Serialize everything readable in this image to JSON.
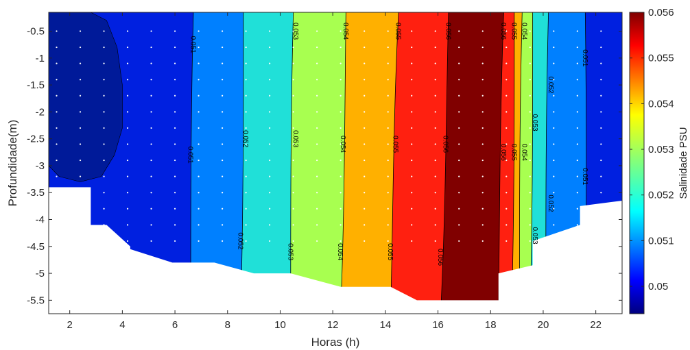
{
  "chart_data": {
    "type": "heatmap",
    "subtype": "filled-contour",
    "title": "",
    "xlabel": "Horas (h)",
    "ylabel": "Profundidade(m)",
    "colorbar_label": "Salinidade PSU",
    "xlim": [
      1.2,
      23.0
    ],
    "ylim": [
      -5.75,
      -0.15
    ],
    "x_ticks": [
      2,
      4,
      6,
      8,
      10,
      12,
      14,
      16,
      18,
      20,
      22
    ],
    "x_tick_labels": [
      "2",
      "4",
      "6",
      "8",
      "10",
      "12",
      "14",
      "16",
      "18",
      "20",
      "22"
    ],
    "y_ticks": [
      -0.5,
      -1,
      -1.5,
      -2,
      -2.5,
      -3,
      -3.5,
      -4,
      -4.5,
      -5,
      -5.5
    ],
    "y_tick_labels": [
      "-0.5",
      "-1",
      "-1.5",
      "-2",
      "-2.5",
      "-3",
      "-3.5",
      "-4",
      "-4.5",
      "-5",
      "-5.5"
    ],
    "clim": [
      0.0494,
      0.056
    ],
    "colorbar_ticks": [
      0.05,
      0.051,
      0.052,
      0.053,
      0.054,
      0.055,
      0.056
    ],
    "colorbar_tick_labels": [
      "0.05",
      "0.051",
      "0.052",
      "0.053",
      "0.054",
      "0.055",
      "0.056"
    ],
    "colormap": "jet",
    "grid": false,
    "bands": [
      {
        "level": 0.0497,
        "x_top": 1.2,
        "x_bottom": 1.2,
        "color": "#0010b0"
      },
      {
        "level": 0.0505,
        "x_top": 1.2,
        "x_bottom": 1.2,
        "color": "#0020e0"
      },
      {
        "level": 0.0515,
        "x_top": 6.7,
        "x_bottom": 6.6,
        "color": "#0080ff"
      },
      {
        "level": 0.0525,
        "x_top": 8.6,
        "x_bottom": 8.5,
        "color": "#20e0d8"
      },
      {
        "level": 0.0535,
        "x_top": 10.5,
        "x_bottom": 10.4,
        "color": "#a8ff50"
      },
      {
        "level": 0.0545,
        "x_top": 12.5,
        "x_bottom": 12.3,
        "color": "#ffb000"
      },
      {
        "level": 0.0555,
        "x_top": 14.5,
        "x_bottom": 14.2,
        "color": "#ff2010"
      },
      {
        "level": 0.0559,
        "x_top": 16.4,
        "x_bottom": 16.1,
        "color": "#800000"
      },
      {
        "level": 0.0555,
        "x_top": 18.5,
        "x_bottom": 18.3,
        "color": "#ff2010"
      },
      {
        "level": 0.0545,
        "x_top": 18.9,
        "x_bottom": 18.8,
        "color": "#ffb000"
      },
      {
        "level": 0.0535,
        "x_top": 19.2,
        "x_bottom": 19.1,
        "color": "#a8ff50"
      },
      {
        "level": 0.0525,
        "x_top": 19.6,
        "x_bottom": 19.5,
        "color": "#20e0d8"
      },
      {
        "level": 0.0515,
        "x_top": 20.2,
        "x_bottom": 20.1,
        "color": "#0080ff"
      },
      {
        "level": 0.0505,
        "x_top": 21.6,
        "x_bottom": 21.6,
        "color": "#0020e0"
      }
    ],
    "bottom_boundary": [
      {
        "x": 1.2,
        "y": -3.4
      },
      {
        "x": 2.8,
        "y": -3.4
      },
      {
        "x": 2.8,
        "y": -4.1
      },
      {
        "x": 3.4,
        "y": -4.1
      },
      {
        "x": 4.3,
        "y": -4.5
      },
      {
        "x": 4.3,
        "y": -4.55
      },
      {
        "x": 5.9,
        "y": -4.8
      },
      {
        "x": 7.5,
        "y": -4.8
      },
      {
        "x": 9.0,
        "y": -5.0
      },
      {
        "x": 10.4,
        "y": -5.0
      },
      {
        "x": 12.3,
        "y": -5.25
      },
      {
        "x": 14.2,
        "y": -5.25
      },
      {
        "x": 15.2,
        "y": -5.5
      },
      {
        "x": 18.3,
        "y": -5.5
      },
      {
        "x": 18.3,
        "y": -5.0
      },
      {
        "x": 19.6,
        "y": -4.85
      },
      {
        "x": 19.6,
        "y": -4.4
      },
      {
        "x": 21.4,
        "y": -4.1
      },
      {
        "x": 21.4,
        "y": -3.75
      },
      {
        "x": 23.0,
        "y": -3.65
      }
    ],
    "low_region_outline": [
      {
        "x": 2.8,
        "y": -0.15
      },
      {
        "x": 3.4,
        "y": -0.3
      },
      {
        "x": 3.8,
        "y": -0.8
      },
      {
        "x": 4.0,
        "y": -1.5
      },
      {
        "x": 4.0,
        "y": -2.3
      },
      {
        "x": 3.7,
        "y": -2.8
      },
      {
        "x": 3.2,
        "y": -3.2
      },
      {
        "x": 2.4,
        "y": -3.3
      },
      {
        "x": 1.6,
        "y": -3.2
      },
      {
        "x": 1.2,
        "y": -3.0
      }
    ],
    "contour_labels": [
      {
        "x": 6.7,
        "y": -0.75,
        "text": "0.051"
      },
      {
        "x": 8.7,
        "y": -2.5,
        "text": "0.052"
      },
      {
        "x": 10.6,
        "y": -0.5,
        "text": "0.053"
      },
      {
        "x": 12.5,
        "y": -0.5,
        "text": "0.054"
      },
      {
        "x": 14.5,
        "y": -0.5,
        "text": "0.055"
      },
      {
        "x": 16.4,
        "y": -0.5,
        "text": "0.056"
      },
      {
        "x": 6.6,
        "y": -2.8,
        "text": "0.051"
      },
      {
        "x": 10.6,
        "y": -2.5,
        "text": "0.053"
      },
      {
        "x": 12.4,
        "y": -2.6,
        "text": "0.054"
      },
      {
        "x": 14.4,
        "y": -2.6,
        "text": "0.055"
      },
      {
        "x": 16.3,
        "y": -2.6,
        "text": "0.056"
      },
      {
        "x": 8.5,
        "y": -4.4,
        "text": "0.052"
      },
      {
        "x": 10.4,
        "y": -4.6,
        "text": "0.053"
      },
      {
        "x": 12.3,
        "y": -4.6,
        "text": "0.054"
      },
      {
        "x": 14.2,
        "y": -4.6,
        "text": "0.055"
      },
      {
        "x": 16.1,
        "y": -4.7,
        "text": "0.056"
      },
      {
        "x": 18.5,
        "y": -0.5,
        "text": "0.056"
      },
      {
        "x": 18.9,
        "y": -0.5,
        "text": "0.055"
      },
      {
        "x": 19.3,
        "y": -0.5,
        "text": "0.054"
      },
      {
        "x": 18.5,
        "y": -2.75,
        "text": "0.056"
      },
      {
        "x": 18.9,
        "y": -2.75,
        "text": "0.055"
      },
      {
        "x": 19.3,
        "y": -2.75,
        "text": "0.054"
      },
      {
        "x": 19.7,
        "y": -2.2,
        "text": "0.053"
      },
      {
        "x": 20.3,
        "y": -1.5,
        "text": "0.052"
      },
      {
        "x": 21.6,
        "y": -1.0,
        "text": "0.051"
      },
      {
        "x": 19.7,
        "y": -4.3,
        "text": "0.053"
      },
      {
        "x": 20.3,
        "y": -3.7,
        "text": "0.052"
      },
      {
        "x": 21.6,
        "y": -3.2,
        "text": "0.051"
      }
    ],
    "sample_x": [
      1.5,
      2.4,
      3.3,
      4.2,
      5.1,
      6.0,
      6.9,
      7.8,
      8.7,
      9.6,
      10.5,
      11.4,
      12.3,
      13.2,
      14.1,
      15.0,
      15.9,
      16.8,
      17.7,
      18.6,
      19.5,
      20.4,
      21.3,
      22.2
    ],
    "sample_depths": [
      -0.5,
      -0.8,
      -1.1,
      -1.4,
      -1.7,
      -2.0,
      -2.3,
      -2.6,
      -2.9,
      -3.2,
      -3.5,
      -3.8,
      -4.1,
      -4.4
    ]
  }
}
